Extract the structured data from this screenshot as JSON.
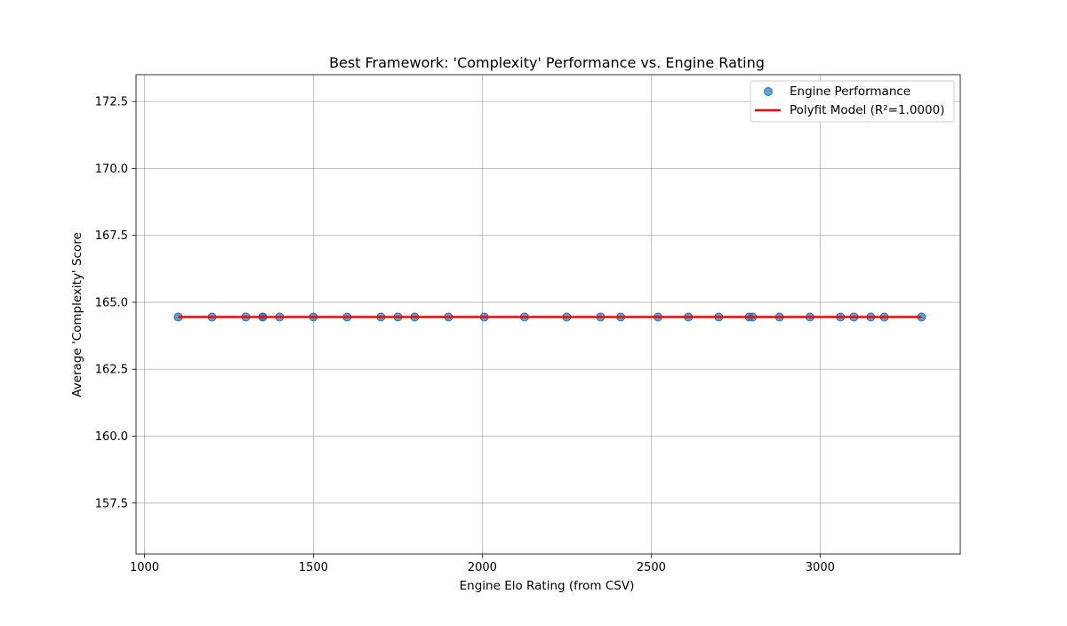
{
  "chart_data": {
    "type": "scatter",
    "title": "Best Framework: 'Complexity' Performance vs. Engine Rating",
    "xlabel": "Engine Elo Rating (from CSV)",
    "ylabel": "Average 'Complexity' Score",
    "xlim": [
      975,
      3415
    ],
    "ylim": [
      155.6,
      173.5
    ],
    "x_ticks": [
      1000,
      1500,
      2000,
      2500,
      3000
    ],
    "x_tick_labels": [
      "1000",
      "1500",
      "2000",
      "2500",
      "3000"
    ],
    "y_ticks": [
      157.5,
      160.0,
      162.5,
      165.0,
      167.5,
      170.0,
      172.5
    ],
    "y_tick_labels": [
      "157.5",
      "160.0",
      "162.5",
      "165.0",
      "167.5",
      "170.0",
      "172.5"
    ],
    "grid": true,
    "legend_position": "top-right",
    "series": [
      {
        "name": "Engine Performance",
        "kind": "scatter",
        "color": "#1f77b4",
        "x": [
          1100,
          1200,
          1300,
          1350,
          1350,
          1400,
          1500,
          1600,
          1700,
          1750,
          1800,
          1900,
          2006,
          2125,
          2250,
          2350,
          2410,
          2520,
          2610,
          2700,
          2790,
          2800,
          2880,
          2970,
          3060,
          3100,
          3150,
          3190,
          3300
        ],
        "y": [
          164.45,
          164.45,
          164.45,
          164.45,
          164.45,
          164.45,
          164.45,
          164.45,
          164.45,
          164.45,
          164.45,
          164.45,
          164.45,
          164.45,
          164.45,
          164.45,
          164.45,
          164.45,
          164.45,
          164.45,
          164.45,
          164.45,
          164.45,
          164.45,
          164.45,
          164.45,
          164.45,
          164.45,
          164.45
        ]
      },
      {
        "name": "Polyfit Model (R²=1.0000)",
        "kind": "line",
        "color": "#ff0000",
        "x": [
          1100,
          3300
        ],
        "y": [
          164.45,
          164.45
        ]
      }
    ]
  }
}
